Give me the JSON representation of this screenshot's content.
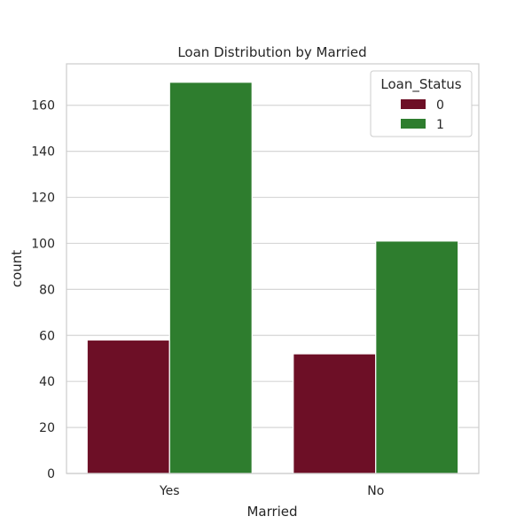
{
  "chart_data": {
    "type": "bar",
    "title": "Loan Distribution by Married",
    "xlabel": "Married",
    "ylabel": "count",
    "categories": [
      "Yes",
      "No"
    ],
    "series": [
      {
        "name": "0",
        "values": [
          58,
          52
        ],
        "color": "#6d0f26"
      },
      {
        "name": "1",
        "values": [
          170,
          101
        ],
        "color": "#2e7d2e"
      }
    ],
    "ylim": [
      0,
      178
    ],
    "yticks": [
      0,
      20,
      40,
      60,
      80,
      100,
      120,
      140,
      160
    ],
    "grid": "horizontal",
    "legend": {
      "title": "Loan_Status",
      "placement": "top-right"
    }
  }
}
